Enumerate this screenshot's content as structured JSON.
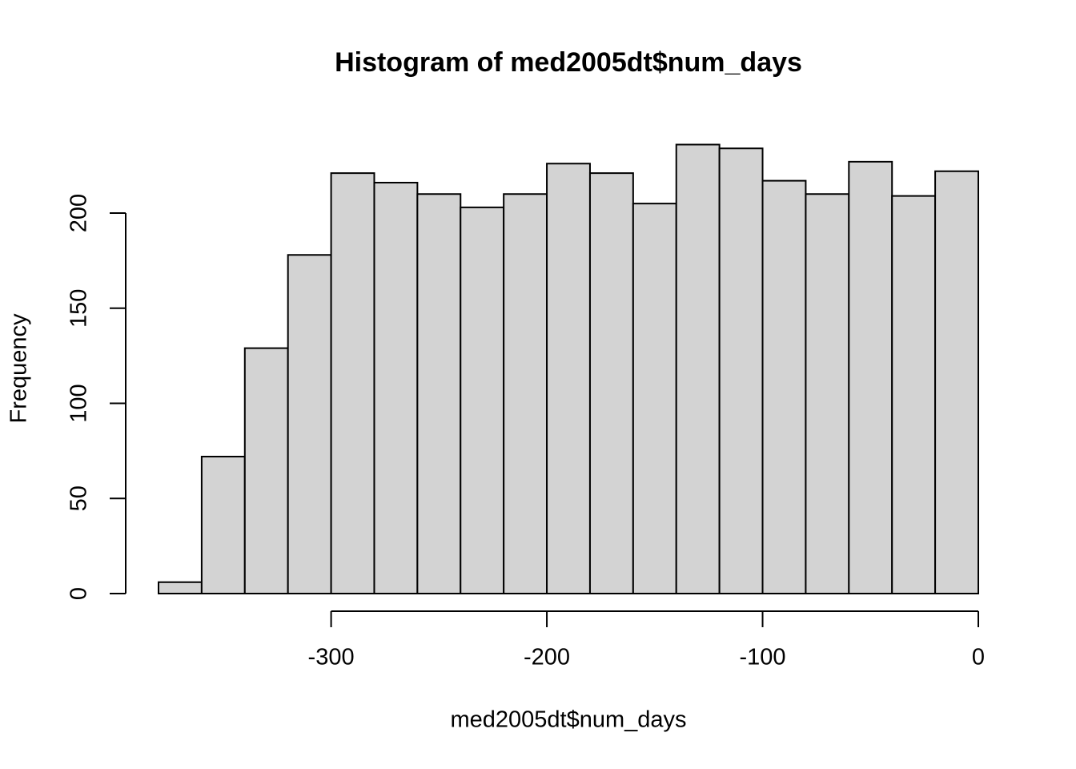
{
  "chart_data": {
    "type": "histogram",
    "title": "Histogram of med2005dt$num_days",
    "x_label": "med2005dt$num_days",
    "y_label": "Frequency",
    "bins": [
      -380,
      -360,
      -340,
      -320,
      -300,
      -280,
      -260,
      -240,
      -220,
      -200,
      -180,
      -160,
      -140,
      -120,
      -100,
      -80,
      -60,
      -40,
      -20,
      0
    ],
    "counts": [
      6,
      72,
      129,
      178,
      221,
      216,
      210,
      203,
      210,
      226,
      221,
      205,
      236,
      234,
      217,
      210,
      227,
      209,
      222
    ],
    "color": "#d3d3d3",
    "xlim": [
      -380,
      0
    ],
    "xticks": [
      -300,
      -200,
      -100,
      0
    ],
    "ylim": [
      0,
      236
    ],
    "yticks": [
      0,
      50,
      100,
      150,
      200
    ]
  }
}
